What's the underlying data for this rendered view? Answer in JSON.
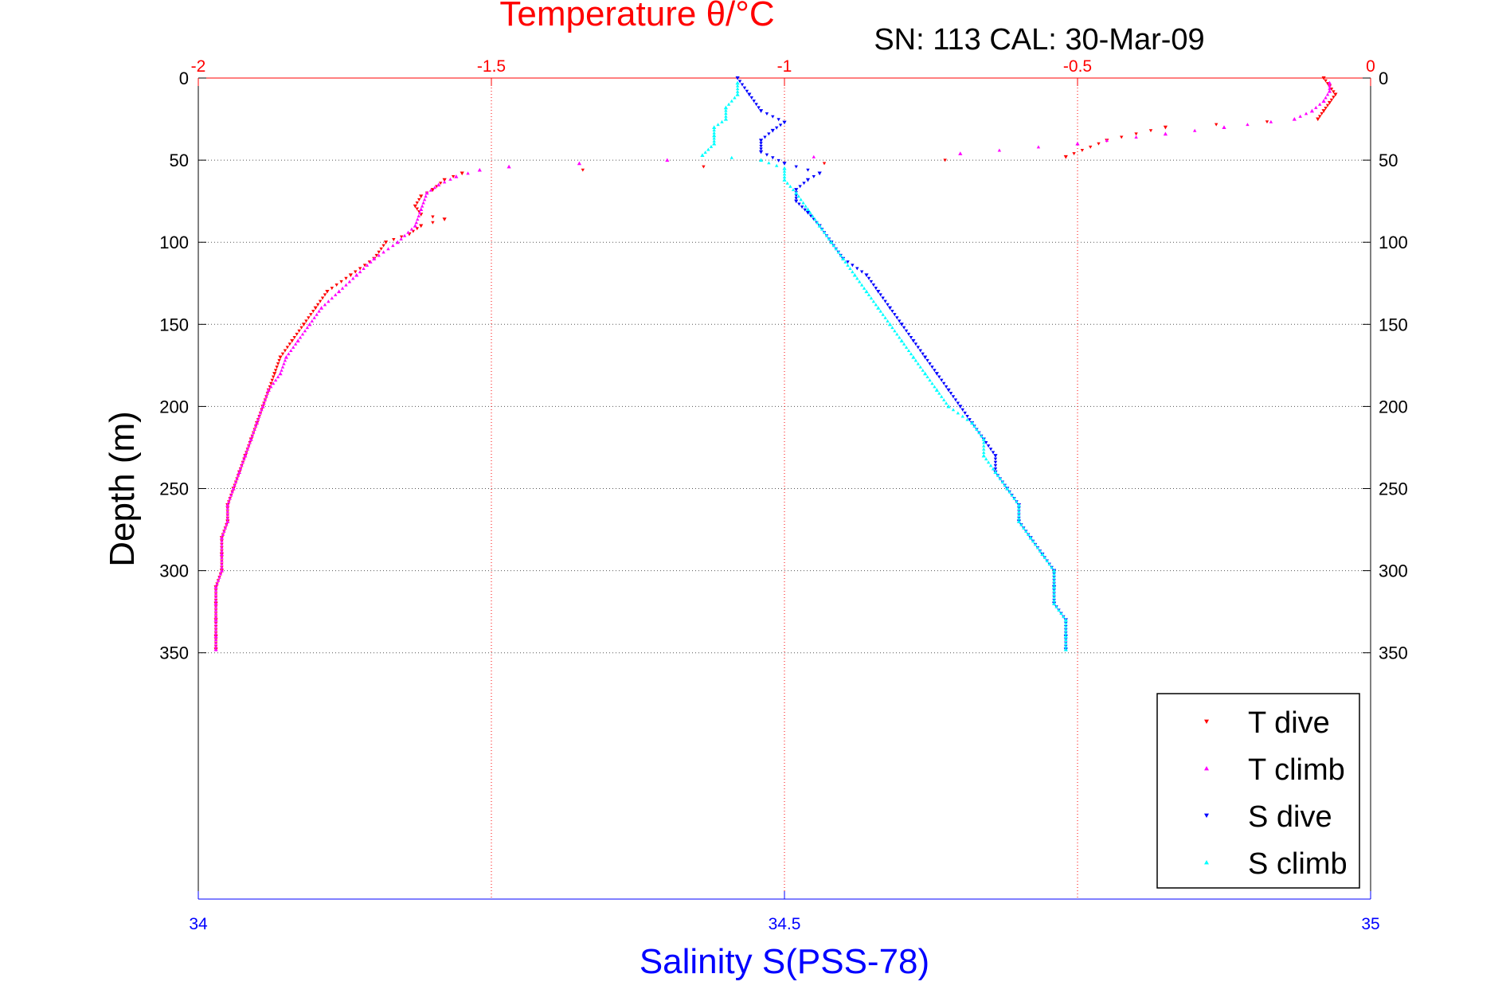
{
  "chart_data": {
    "type": "scatter",
    "title": "Temperature θ/°C",
    "subtitle": "SN: 113  CAL: 30-Mar-09",
    "ylabel": "Depth (m)",
    "xlabel": "Salinity S(PSS-78)",
    "ylim": [
      0,
      500
    ],
    "y_reversed": true,
    "y_ticks": [
      "0",
      "50",
      "100",
      "150",
      "200",
      "250",
      "300",
      "350"
    ],
    "temperature_axis": {
      "position": "top",
      "range": [
        -2,
        0
      ],
      "ticks": [
        "-2",
        "-1.5",
        "-1",
        "-0.5",
        "0"
      ],
      "color": "#ff0000"
    },
    "salinity_axis": {
      "position": "bottom",
      "range": [
        34,
        35
      ],
      "ticks": [
        "34",
        "34.5",
        "35"
      ],
      "color": "#0000ff"
    },
    "grid": true,
    "legend": {
      "position": "bottom-right"
    },
    "series": [
      {
        "name": "T dive",
        "axis": "temperature",
        "color": "#ff0000",
        "marker": "triangle-down",
        "points": [
          [
            -0.08,
            0
          ],
          [
            -0.07,
            5
          ],
          [
            -0.06,
            10
          ],
          [
            -0.07,
            15
          ],
          [
            -0.08,
            20
          ],
          [
            -0.09,
            25
          ],
          [
            -0.35,
            30
          ],
          [
            -0.45,
            38
          ],
          [
            -0.52,
            48
          ],
          [
            -1.55,
            58
          ],
          [
            -1.58,
            62
          ],
          [
            -1.6,
            68
          ],
          [
            -1.62,
            72
          ],
          [
            -1.63,
            78
          ],
          [
            -1.62,
            83
          ],
          [
            -1.58,
            86
          ],
          [
            -1.62,
            90
          ],
          [
            -1.64,
            95
          ],
          [
            -1.68,
            100
          ],
          [
            -1.7,
            110
          ],
          [
            -1.74,
            120
          ],
          [
            -1.78,
            130
          ],
          [
            -1.8,
            140
          ],
          [
            -1.82,
            150
          ],
          [
            -1.84,
            160
          ],
          [
            -1.86,
            170
          ],
          [
            -1.87,
            180
          ],
          [
            -1.88,
            190
          ],
          [
            -1.89,
            200
          ],
          [
            -1.9,
            210
          ],
          [
            -1.91,
            220
          ],
          [
            -1.92,
            230
          ],
          [
            -1.93,
            240
          ],
          [
            -1.94,
            250
          ],
          [
            -1.95,
            260
          ],
          [
            -1.95,
            270
          ],
          [
            -1.96,
            280
          ],
          [
            -1.96,
            290
          ],
          [
            -1.96,
            300
          ],
          [
            -1.97,
            310
          ],
          [
            -1.97,
            320
          ],
          [
            -1.97,
            330
          ],
          [
            -1.97,
            340
          ],
          [
            -1.97,
            348
          ]
        ]
      },
      {
        "name": "T climb",
        "axis": "temperature",
        "color": "#ff00ff",
        "marker": "triangle-up",
        "points": [
          [
            -0.07,
            3
          ],
          [
            -0.07,
            8
          ],
          [
            -0.08,
            14
          ],
          [
            -0.1,
            20
          ],
          [
            -0.13,
            25
          ],
          [
            -0.25,
            30
          ],
          [
            -0.35,
            34
          ],
          [
            -0.5,
            40
          ],
          [
            -0.7,
            46
          ],
          [
            -1.2,
            50
          ],
          [
            -1.35,
            52
          ],
          [
            -1.47,
            54
          ],
          [
            -1.52,
            56
          ],
          [
            -1.56,
            60
          ],
          [
            -1.59,
            65
          ],
          [
            -1.61,
            70
          ],
          [
            -1.62,
            80
          ],
          [
            -1.63,
            90
          ],
          [
            -1.66,
            100
          ],
          [
            -1.7,
            110
          ],
          [
            -1.73,
            120
          ],
          [
            -1.76,
            130
          ],
          [
            -1.79,
            140
          ],
          [
            -1.81,
            150
          ],
          [
            -1.83,
            160
          ],
          [
            -1.85,
            170
          ],
          [
            -1.86,
            180
          ],
          [
            -1.88,
            190
          ],
          [
            -1.89,
            200
          ],
          [
            -1.9,
            210
          ],
          [
            -1.91,
            220
          ],
          [
            -1.92,
            230
          ],
          [
            -1.93,
            240
          ],
          [
            -1.94,
            250
          ],
          [
            -1.95,
            260
          ],
          [
            -1.95,
            270
          ],
          [
            -1.96,
            280
          ],
          [
            -1.96,
            290
          ],
          [
            -1.96,
            300
          ],
          [
            -1.97,
            310
          ],
          [
            -1.97,
            320
          ],
          [
            -1.97,
            330
          ],
          [
            -1.97,
            340
          ],
          [
            -1.97,
            348
          ]
        ]
      },
      {
        "name": "S dive",
        "axis": "salinity",
        "color": "#0000ff",
        "marker": "triangle-down",
        "points": [
          [
            34.46,
            0
          ],
          [
            34.47,
            10
          ],
          [
            34.48,
            20
          ],
          [
            34.5,
            27
          ],
          [
            34.49,
            32
          ],
          [
            34.48,
            38
          ],
          [
            34.48,
            45
          ],
          [
            34.5,
            52
          ],
          [
            34.53,
            58
          ],
          [
            34.52,
            62
          ],
          [
            34.51,
            68
          ],
          [
            34.51,
            75
          ],
          [
            34.52,
            82
          ],
          [
            34.53,
            90
          ],
          [
            34.54,
            100
          ],
          [
            34.55,
            110
          ],
          [
            34.57,
            120
          ],
          [
            34.58,
            130
          ],
          [
            34.59,
            140
          ],
          [
            34.6,
            150
          ],
          [
            34.61,
            160
          ],
          [
            34.62,
            170
          ],
          [
            34.63,
            180
          ],
          [
            34.64,
            190
          ],
          [
            34.65,
            200
          ],
          [
            34.66,
            210
          ],
          [
            34.67,
            220
          ],
          [
            34.68,
            230
          ],
          [
            34.68,
            240
          ],
          [
            34.69,
            250
          ],
          [
            34.7,
            260
          ],
          [
            34.7,
            270
          ],
          [
            34.71,
            280
          ],
          [
            34.72,
            290
          ],
          [
            34.73,
            300
          ],
          [
            34.73,
            310
          ],
          [
            34.73,
            320
          ],
          [
            34.74,
            330
          ],
          [
            34.74,
            340
          ],
          [
            34.74,
            348
          ]
        ]
      },
      {
        "name": "S climb",
        "axis": "salinity",
        "color": "#00ffff",
        "marker": "triangle-up",
        "points": [
          [
            34.46,
            3
          ],
          [
            34.46,
            10
          ],
          [
            34.45,
            18
          ],
          [
            34.45,
            25
          ],
          [
            34.44,
            30
          ],
          [
            34.44,
            35
          ],
          [
            34.44,
            40
          ],
          [
            34.43,
            47
          ],
          [
            34.48,
            50
          ],
          [
            34.5,
            55
          ],
          [
            34.5,
            62
          ],
          [
            34.51,
            70
          ],
          [
            34.52,
            80
          ],
          [
            34.53,
            90
          ],
          [
            34.54,
            100
          ],
          [
            34.55,
            110
          ],
          [
            34.56,
            120
          ],
          [
            34.57,
            130
          ],
          [
            34.58,
            140
          ],
          [
            34.59,
            150
          ],
          [
            34.6,
            160
          ],
          [
            34.61,
            170
          ],
          [
            34.62,
            180
          ],
          [
            34.63,
            190
          ],
          [
            34.64,
            200
          ],
          [
            34.66,
            210
          ],
          [
            34.67,
            220
          ],
          [
            34.67,
            230
          ],
          [
            34.68,
            240
          ],
          [
            34.69,
            250
          ],
          [
            34.7,
            260
          ],
          [
            34.7,
            270
          ],
          [
            34.71,
            280
          ],
          [
            34.72,
            290
          ],
          [
            34.73,
            300
          ],
          [
            34.73,
            310
          ],
          [
            34.73,
            320
          ],
          [
            34.74,
            330
          ],
          [
            34.74,
            340
          ],
          [
            34.74,
            348
          ]
        ]
      }
    ]
  }
}
